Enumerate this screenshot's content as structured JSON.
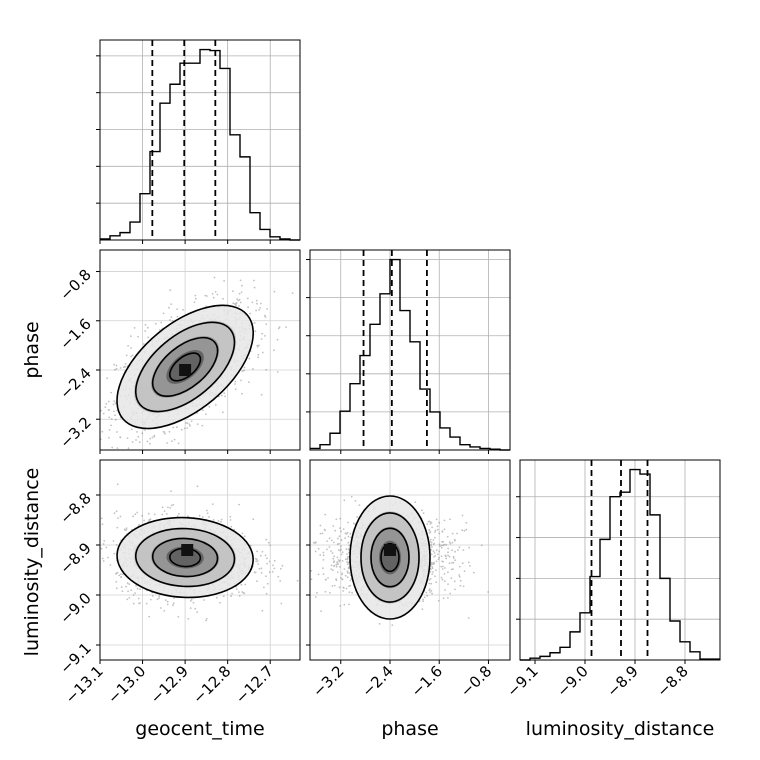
{
  "chart_data": {
    "type": "corner",
    "grid": true,
    "parameters": [
      {
        "name": "geocent_time",
        "range": [
          -13.1,
          -12.63
        ],
        "ticks": [
          -13.1,
          -13.0,
          -12.9,
          -12.8,
          -12.7
        ],
        "tick_labels": [
          "−13.1",
          "−13.0",
          "−12.9",
          "−12.8",
          "−12.7"
        ]
      },
      {
        "name": "phase",
        "range": [
          -3.7,
          -0.45
        ],
        "ticks": [
          -3.2,
          -2.4,
          -1.6,
          -0.8
        ],
        "tick_labels": [
          "−3.2",
          "−2.4",
          "−1.6",
          "−0.8"
        ]
      },
      {
        "name": "luminosity_distance",
        "range": [
          -9.13,
          -8.73
        ],
        "ticks": [
          -9.1,
          -9.0,
          -8.9,
          -8.8
        ],
        "tick_labels": [
          "−9.1",
          "−9.0",
          "−8.9",
          "−8.8"
        ]
      }
    ],
    "histograms": [
      {
        "param": "geocent_time",
        "bin_edges_range": [
          -13.1,
          -12.63
        ],
        "counts": [
          1,
          4,
          7,
          17,
          44,
          84,
          130,
          148,
          168,
          168,
          181,
          180,
          163,
          100,
          79,
          26,
          10,
          3,
          1,
          0
        ],
        "quantiles": [
          -12.977,
          -12.902,
          -12.829
        ]
      },
      {
        "param": "phase",
        "bin_edges_range": [
          -3.7,
          -0.45
        ],
        "counts": [
          2,
          7,
          22,
          51,
          87,
          124,
          165,
          205,
          250,
          183,
          142,
          80,
          50,
          29,
          17,
          7,
          4,
          2,
          1,
          0
        ],
        "quantiles": [
          -2.83,
          -2.37,
          -1.8
        ]
      },
      {
        "param": "luminosity_distance",
        "bin_edges_range": [
          -9.13,
          -8.73
        ],
        "counts": [
          0,
          2,
          4,
          8,
          14,
          31,
          52,
          92,
          133,
          180,
          185,
          210,
          205,
          160,
          90,
          43,
          20,
          9,
          1,
          1
        ],
        "quantiles": [
          -8.987,
          -8.928,
          -8.875
        ]
      }
    ],
    "pairs": [
      {
        "x": "geocent_time",
        "y": "phase",
        "mean": [
          -12.9,
          -2.35
        ],
        "sd": [
          0.08,
          0.5
        ],
        "corr": 0.55,
        "peak": [
          -12.9,
          -2.4
        ]
      },
      {
        "x": "geocent_time",
        "y": "luminosity_distance",
        "mean": [
          -12.9,
          -8.925
        ],
        "sd": [
          0.08,
          0.04
        ],
        "corr": -0.05,
        "peak": [
          -12.895,
          -8.91
        ]
      },
      {
        "x": "phase",
        "y": "luminosity_distance",
        "mean": [
          -2.4,
          -8.925
        ],
        "sd": [
          0.5,
          0.04
        ],
        "corr": 0.0,
        "peak": [
          -2.4,
          -8.91
        ]
      }
    ]
  }
}
